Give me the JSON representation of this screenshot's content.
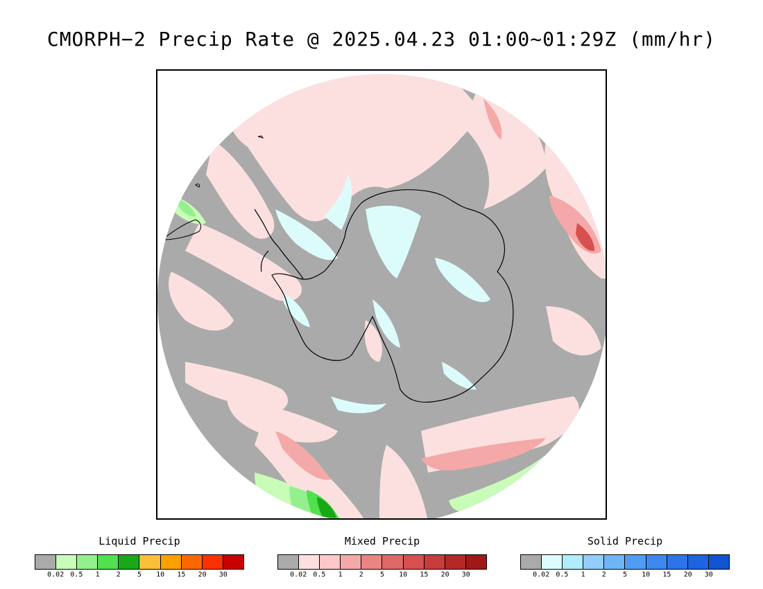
{
  "title": "CMORPH−2 Precip Rate @ 2025.04.23 01:00~01:29Z (mm/hr)",
  "map": {
    "projection": "south-polar-stereographic",
    "background_color": "#aaaaaa",
    "coastline_color": "#000000"
  },
  "legends": [
    {
      "name": "liquid",
      "title": "Liquid Precip",
      "ticks": [
        "0.02",
        "0.5",
        "1",
        "2",
        "5",
        "10",
        "15",
        "20",
        "30"
      ],
      "colors": [
        "#aaaaaa",
        "#c8fcb8",
        "#94f08c",
        "#50e050",
        "#18a818",
        "#fcc038",
        "#fca000",
        "#fc6800",
        "#fc3000",
        "#c80000"
      ]
    },
    {
      "name": "mixed",
      "title": "Mixed Precip",
      "ticks": [
        "0.02",
        "0.5",
        "1",
        "2",
        "5",
        "10",
        "15",
        "20",
        "30"
      ],
      "colors": [
        "#aaaaaa",
        "#fce0e0",
        "#fcc8c8",
        "#f4a8a8",
        "#ec8484",
        "#e06868",
        "#d85050",
        "#c83c3c",
        "#b42828",
        "#a01818"
      ]
    },
    {
      "name": "solid",
      "title": "Solid Precip",
      "ticks": [
        "0.02",
        "0.5",
        "1",
        "2",
        "5",
        "10",
        "15",
        "20",
        "30"
      ],
      "colors": [
        "#aaaaaa",
        "#dcfcfc",
        "#b0ecfc",
        "#94ccfc",
        "#70b4f8",
        "#509cf4",
        "#3c88f0",
        "#2c74e8",
        "#1c64e0",
        "#1054d0"
      ]
    }
  ]
}
